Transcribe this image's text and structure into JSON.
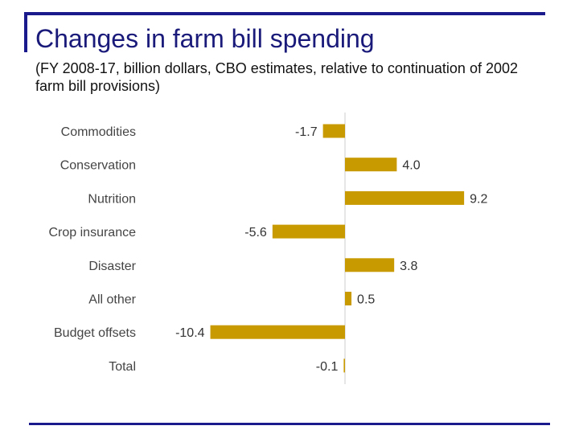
{
  "colors": {
    "frame": "#1a1a8c",
    "bar": "#c99a00",
    "axis": "#cccccc",
    "category_text": "#444444",
    "value_text": "#333333"
  },
  "chart_data": {
    "type": "bar",
    "orientation": "horizontal",
    "title": "Changes in farm bill spending",
    "subtitle": "(FY 2008-17, billion dollars, CBO estimates, relative to continuation of 2002 farm bill provisions)",
    "categories": [
      "Commodities",
      "Conservation",
      "Nutrition",
      "Crop insurance",
      "Disaster",
      "All other",
      "Budget offsets",
      "Total"
    ],
    "values": [
      -1.7,
      4.0,
      9.2,
      -5.6,
      3.8,
      0.5,
      -10.4,
      -0.1
    ],
    "value_labels": [
      "-1.7",
      "4.0",
      "9.2",
      "-5.6",
      "3.8",
      "0.5",
      "-10.4",
      "-0.1"
    ],
    "xlim": [
      -11,
      10
    ],
    "xlabel": "",
    "ylabel": "",
    "grid": false,
    "legend": "none"
  }
}
